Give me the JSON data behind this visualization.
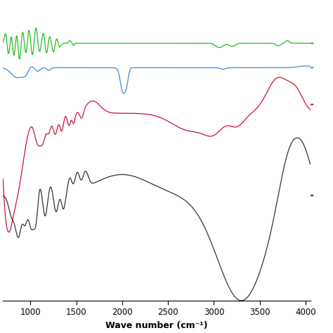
{
  "xlabel": "Wave number (cm⁻¹)",
  "xlim": [
    700,
    4050
  ],
  "xticks": [
    1000,
    1500,
    2000,
    2500,
    3000,
    3500,
    4000
  ],
  "background_color": "#ffffff",
  "line_colors": {
    "green": "#22bb22",
    "blue": "#4488cc",
    "red": "#cc1133",
    "black": "#333333"
  },
  "line_width": 0.9,
  "figsize": [
    4.74,
    4.74
  ],
  "dpi": 100
}
